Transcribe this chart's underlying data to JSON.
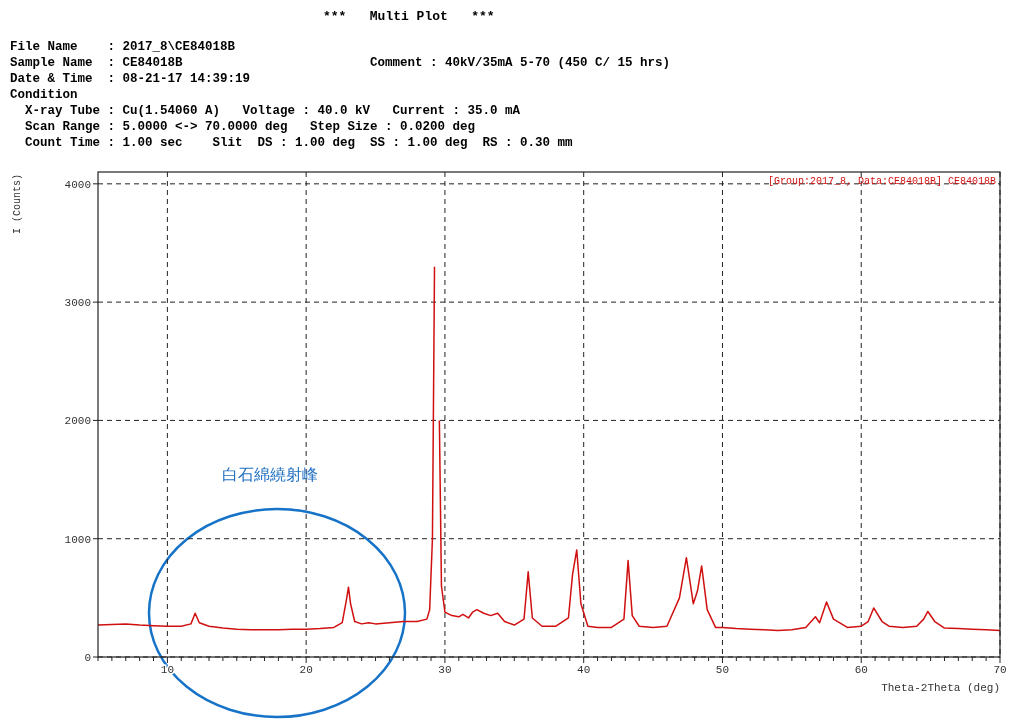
{
  "chart_data": {
    "type": "line",
    "title": "***   Multi Plot   ***",
    "xlabel": "Theta-2Theta (deg)",
    "ylabel": "I (Counts)",
    "annotations": [
      "File Name    : 2017_8\\CE84018B",
      "Sample Name  : CE84018B",
      "Comment : 40kV/35mA 5-70 (450 C/ 15 hrs)",
      "Date & Time  : 08-21-17 14:39:19",
      "Condition",
      "  X-ray Tube : Cu(1.54060 A)   Voltage : 40.0 kV   Current : 35.0 mA",
      "  Scan Range : 5.0000 <-> 70.0000 deg   Step Size : 0.0200 deg",
      "  Count Time : 1.00 sec    Slit  DS : 1.00 deg  SS : 1.00 deg  RS : 0.30 mm",
      "白石綿繞射峰"
    ],
    "xlim": [
      5,
      70
    ],
    "ylim": [
      0,
      4100
    ],
    "xticks": [
      {
        "value": 5,
        "label": null
      },
      {
        "value": 6,
        "label": null
      },
      {
        "value": 7,
        "label": null
      },
      {
        "value": 8,
        "label": null
      },
      {
        "value": 9,
        "label": null
      },
      10,
      {
        "value": 11,
        "label": null
      },
      {
        "value": 12,
        "label": null
      },
      {
        "value": 13,
        "label": null
      },
      {
        "value": 14,
        "label": null
      },
      {
        "value": 15,
        "label": null
      },
      {
        "value": 16,
        "label": null
      },
      {
        "value": 17,
        "label": null
      },
      {
        "value": 18,
        "label": null
      },
      {
        "value": 19,
        "label": null
      },
      20,
      {
        "value": 21,
        "label": null
      },
      {
        "value": 22,
        "label": null
      },
      {
        "value": 23,
        "label": null
      },
      {
        "value": 24,
        "label": null
      },
      {
        "value": 25,
        "label": null
      },
      {
        "value": 26,
        "label": null
      },
      {
        "value": 27,
        "label": null
      },
      {
        "value": 28,
        "label": null
      },
      {
        "value": 29,
        "label": null
      },
      30,
      {
        "value": 31,
        "label": null
      },
      {
        "value": 32,
        "label": null
      },
      {
        "value": 33,
        "label": null
      },
      {
        "value": 34,
        "label": null
      },
      {
        "value": 35,
        "label": null
      },
      {
        "value": 36,
        "label": null
      },
      {
        "value": 37,
        "label": null
      },
      {
        "value": 38,
        "label": null
      },
      {
        "value": 39,
        "label": null
      },
      40,
      {
        "value": 41,
        "label": null
      },
      {
        "value": 42,
        "label": null
      },
      {
        "value": 43,
        "label": null
      },
      {
        "value": 44,
        "label": null
      },
      {
        "value": 45,
        "label": null
      },
      {
        "value": 46,
        "label": null
      },
      {
        "value": 47,
        "label": null
      },
      {
        "value": 48,
        "label": null
      },
      {
        "value": 49,
        "label": null
      },
      50,
      {
        "value": 51,
        "label": null
      },
      {
        "value": 52,
        "label": null
      },
      {
        "value": 53,
        "label": null
      },
      {
        "value": 54,
        "label": null
      },
      {
        "value": 55,
        "label": null
      },
      {
        "value": 56,
        "label": null
      },
      {
        "value": 57,
        "label": null
      },
      {
        "value": 58,
        "label": null
      },
      {
        "value": 59,
        "label": null
      },
      60,
      {
        "value": 61,
        "label": null
      },
      {
        "value": 62,
        "label": null
      },
      {
        "value": 63,
        "label": null
      },
      {
        "value": 64,
        "label": null
      },
      {
        "value": 65,
        "label": null
      },
      {
        "value": 66,
        "label": null
      },
      {
        "value": 67,
        "label": null
      },
      {
        "value": 68,
        "label": null
      },
      {
        "value": 69,
        "label": null
      },
      70
    ],
    "yticks": [
      0,
      1000,
      2000,
      3000,
      4000
    ],
    "grid": true,
    "legend": "top right",
    "line_style": "solid",
    "series": [
      {
        "name": "[Group:2017_8, Data:CE84018B] CE84018B",
        "color": "#d01010",
        "x": [
          5,
          6,
          7,
          8,
          9,
          10,
          11,
          11.7,
          12,
          12.3,
          13,
          14,
          15,
          16,
          17,
          18,
          19,
          20,
          21,
          22,
          22.6,
          22.9,
          23.05,
          23.2,
          23.5,
          24,
          24.5,
          25,
          26,
          27,
          28,
          28.7,
          28.9,
          29.1,
          29.25,
          29.35,
          29.5,
          29.6,
          29.75,
          30,
          30.5,
          31,
          31.3,
          31.7,
          32,
          32.3,
          32.8,
          33.3,
          33.8,
          34.3,
          35,
          35.7,
          36,
          36.3,
          37,
          38,
          38.9,
          39.2,
          39.5,
          39.8,
          40.3,
          41,
          42,
          42.9,
          43.2,
          43.5,
          44,
          45,
          46,
          46.9,
          47.4,
          47.9,
          48.2,
          48.5,
          48.9,
          49.5,
          50,
          51,
          52,
          53,
          54,
          55,
          56,
          56.7,
          57,
          57.5,
          58,
          59,
          60,
          60.5,
          60.9,
          61.5,
          62,
          63,
          64,
          64.5,
          64.8,
          65.3,
          66,
          67,
          68,
          69,
          70
        ],
        "values": [
          270,
          275,
          280,
          270,
          265,
          260,
          260,
          280,
          370,
          290,
          260,
          245,
          235,
          230,
          230,
          230,
          235,
          235,
          240,
          250,
          290,
          480,
          590,
          450,
          300,
          280,
          290,
          280,
          290,
          300,
          300,
          320,
          400,
          1000,
          3300,
          null,
          null,
          2000,
          600,
          380,
          350,
          340,
          360,
          330,
          380,
          400,
          370,
          350,
          370,
          300,
          270,
          320,
          720,
          330,
          260,
          260,
          330,
          700,
          905,
          450,
          260,
          250,
          250,
          320,
          815,
          350,
          260,
          250,
          260,
          500,
          840,
          450,
          560,
          770,
          400,
          250,
          250,
          240,
          235,
          230,
          225,
          230,
          250,
          340,
          290,
          465,
          320,
          250,
          260,
          300,
          415,
          300,
          260,
          250,
          260,
          320,
          385,
          300,
          245,
          240,
          235,
          230,
          225
        ]
      }
    ]
  }
}
